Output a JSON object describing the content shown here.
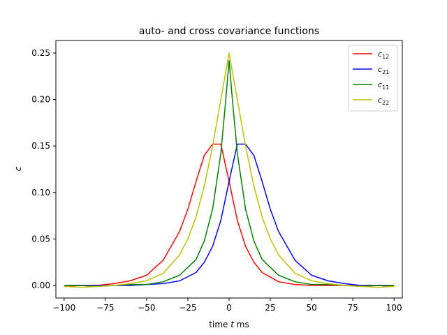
{
  "chart_data": {
    "type": "line",
    "title": "auto- and cross covariance functions",
    "xlabel_main": "time ",
    "xlabel_var": "t",
    "xlabel_unit": " ms",
    "ylabel": "c",
    "xlim": [
      -105,
      105
    ],
    "ylim": [
      -0.0135,
      0.2635
    ],
    "xticks": [
      -100,
      -75,
      -50,
      -25,
      0,
      25,
      50,
      75,
      100
    ],
    "xtick_labels": [
      "−100",
      "−75",
      "−50",
      "−25",
      "0",
      "25",
      "50",
      "75",
      "100"
    ],
    "yticks": [
      0.0,
      0.05,
      0.1,
      0.15,
      0.2,
      0.25
    ],
    "ytick_labels": [
      "0.00",
      "0.05",
      "0.10",
      "0.15",
      "0.20",
      "0.25"
    ],
    "legend_position": "top-right",
    "series": [
      {
        "name": "c12",
        "name_base": "c",
        "name_sub": "12",
        "color": "#ff0000",
        "x": [
          -100,
          -90,
          -80,
          -70,
          -60,
          -50,
          -40,
          -30,
          -25,
          -20,
          -15,
          -10,
          -5,
          0,
          5,
          10,
          15,
          20,
          30,
          40,
          50,
          60,
          70,
          80,
          90,
          100
        ],
        "y": [
          -0.001,
          0.0,
          0.0,
          0.002,
          0.005,
          0.011,
          0.027,
          0.058,
          0.082,
          0.112,
          0.14,
          0.152,
          0.152,
          0.112,
          0.07,
          0.042,
          0.025,
          0.014,
          0.004,
          0.001,
          0.0,
          0.0,
          0.0,
          0.0,
          0.0,
          0.0
        ]
      },
      {
        "name": "c21",
        "name_base": "c",
        "name_sub": "21",
        "color": "#0000ff",
        "x": [
          -100,
          -90,
          -80,
          -70,
          -60,
          -50,
          -40,
          -30,
          -20,
          -15,
          -10,
          -5,
          0,
          5,
          10,
          15,
          20,
          25,
          30,
          40,
          50,
          60,
          70,
          80,
          90,
          100
        ],
        "y": [
          0.0,
          0.0,
          0.0,
          0.0,
          0.0,
          0.001,
          0.002,
          0.005,
          0.014,
          0.025,
          0.042,
          0.07,
          0.112,
          0.152,
          0.152,
          0.14,
          0.112,
          0.082,
          0.058,
          0.027,
          0.011,
          0.005,
          0.002,
          0.0,
          0.0,
          -0.001
        ]
      },
      {
        "name": "c11",
        "name_base": "c",
        "name_sub": "11",
        "color": "#008000",
        "x": [
          -100,
          -90,
          -80,
          -70,
          -60,
          -50,
          -40,
          -30,
          -20,
          -15,
          -10,
          -5,
          -2,
          0,
          2,
          5,
          10,
          15,
          20,
          30,
          40,
          50,
          60,
          70,
          80,
          90,
          100
        ],
        "y": [
          0.0,
          0.0,
          -0.001,
          0.0,
          0.001,
          0.001,
          0.004,
          0.011,
          0.028,
          0.048,
          0.082,
          0.142,
          0.2,
          0.242,
          0.2,
          0.142,
          0.082,
          0.048,
          0.028,
          0.011,
          0.004,
          0.001,
          0.001,
          0.0,
          -0.001,
          0.0,
          0.0
        ]
      },
      {
        "name": "c22",
        "name_base": "c",
        "name_sub": "22",
        "color": "#bfbf00",
        "x": [
          -100,
          -90,
          -80,
          -70,
          -60,
          -50,
          -40,
          -30,
          -25,
          -20,
          -15,
          -10,
          -5,
          0,
          5,
          10,
          15,
          20,
          25,
          30,
          40,
          50,
          60,
          70,
          80,
          90,
          100
        ],
        "y": [
          -0.001,
          -0.002,
          -0.001,
          0.0,
          0.002,
          0.005,
          0.013,
          0.033,
          0.05,
          0.074,
          0.107,
          0.15,
          0.2,
          0.25,
          0.2,
          0.15,
          0.107,
          0.074,
          0.05,
          0.033,
          0.013,
          0.005,
          0.002,
          0.0,
          -0.001,
          -0.002,
          -0.001
        ]
      }
    ]
  }
}
